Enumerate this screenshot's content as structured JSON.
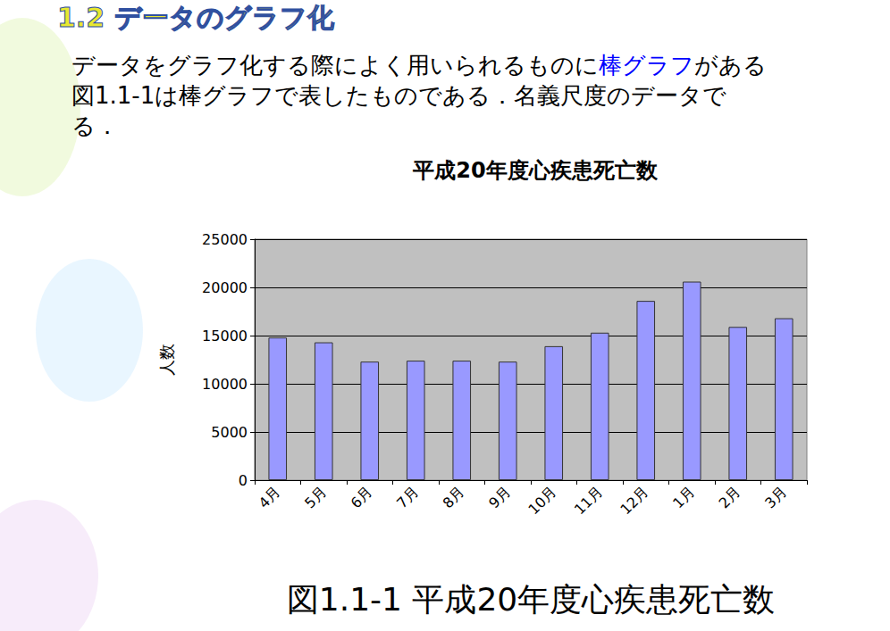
{
  "slide": {
    "heading": "1.2 データのグラフ化",
    "paragraph": [
      [
        {
          "text": "データをグラフ化する際によく用いられるものに"
        },
        {
          "text": "棒グラフ",
          "color": "#0000ff"
        },
        {
          "text": "がある"
        }
      ],
      [
        {
          "text": "図1.1-1は棒グラフで表したものである．名義尺度のデータで"
        }
      ],
      [
        {
          "text": "る．"
        }
      ]
    ],
    "caption": "図1.1-1  平成20年度心疾患死亡数"
  },
  "chart_data": {
    "type": "bar",
    "title": "平成20年度心疾患死亡数",
    "y_label": "人数",
    "categories": [
      "4月",
      "5月",
      "6月",
      "7月",
      "8月",
      "9月",
      "10月",
      "11月",
      "12月",
      "1月",
      "2月",
      "3月"
    ],
    "values": [
      14800,
      14300,
      12300,
      12400,
      12400,
      12300,
      13900,
      15300,
      18600,
      20600,
      15900,
      16800
    ],
    "color": "#9999ff",
    "ylim": [
      0,
      25000
    ],
    "yticks": [
      0,
      5000,
      10000,
      15000,
      20000,
      25000
    ],
    "grid": true
  }
}
